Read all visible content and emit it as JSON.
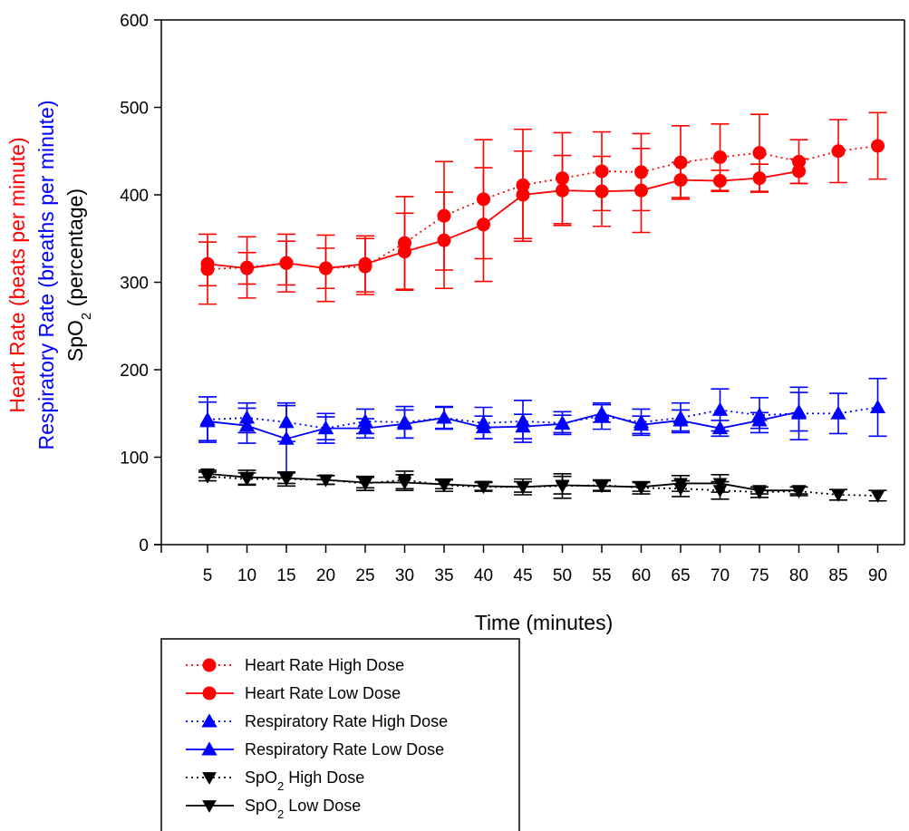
{
  "chart_data": {
    "type": "line",
    "x": [
      5,
      10,
      15,
      20,
      25,
      30,
      35,
      40,
      45,
      50,
      55,
      60,
      65,
      70,
      75,
      80,
      85,
      90
    ],
    "x_tick_labels": [
      "5",
      "10",
      "15",
      "20",
      "25",
      "30",
      "35",
      "40",
      "45",
      "50",
      "55",
      "60",
      "65",
      "70",
      "75",
      "80",
      "85",
      "90"
    ],
    "y_ticks": [
      0,
      100,
      200,
      300,
      400,
      500,
      600
    ],
    "ylim": [
      0,
      600
    ],
    "xlabel": "Time (minutes)",
    "ylabel_lines": [
      {
        "text": "Heart Rate (beats per minute)",
        "color": "#ff0000"
      },
      {
        "text": "Respiratory Rate (breaths per minute)",
        "color": "#0000ff"
      },
      {
        "text": "SpO",
        "sub": "2",
        "rest": " (percentage)",
        "color": "#000000"
      }
    ],
    "legend_position": "bottom-left (below plot)",
    "grid": false,
    "series": [
      {
        "name": "Heart Rate High Dose",
        "legend_text": "Heart Rate High Dose",
        "color": "#ff0000",
        "marker": "circle",
        "line": "dotted",
        "values": [
          315,
          317,
          322,
          316,
          318,
          345,
          376,
          395,
          411,
          419,
          427,
          426,
          437,
          443,
          448,
          438,
          450,
          456
        ],
        "err": [
          40,
          35,
          33,
          38,
          32,
          53,
          62,
          68,
          64,
          52,
          45,
          44,
          42,
          38,
          44,
          25,
          36,
          38
        ]
      },
      {
        "name": "Heart Rate Low Dose",
        "legend_text": "Heart Rate Low Dose",
        "color": "#ff0000",
        "marker": "circle",
        "line": "solid",
        "values": [
          321,
          316,
          322,
          316,
          321,
          335,
          348,
          366,
          400,
          405,
          404,
          405,
          417,
          416,
          419,
          427,
          null,
          null
        ],
        "err": [
          25,
          18,
          25,
          23,
          32,
          44,
          55,
          65,
          50,
          40,
          40,
          48,
          20,
          12,
          16,
          14,
          null,
          null
        ]
      },
      {
        "name": "Respiratory Rate High Dose",
        "legend_text": "Respiratory Rate High Dose",
        "color": "#0000ff",
        "marker": "triangle-up",
        "line": "dotted",
        "values": [
          143,
          145,
          140,
          133,
          141,
          140,
          145,
          139,
          141,
          139,
          147,
          140,
          145,
          154,
          148,
          150,
          150,
          157
        ],
        "err": [
          26,
          17,
          22,
          17,
          14,
          18,
          13,
          18,
          24,
          13,
          15,
          15,
          17,
          24,
          20,
          30,
          23,
          33
        ]
      },
      {
        "name": "Respiratory Rate Low Dose",
        "legend_text": "Respiratory Rate Low Dose",
        "color": "#0000ff",
        "marker": "triangle-up",
        "line": "solid",
        "values": [
          141,
          136,
          121,
          133,
          133,
          138,
          145,
          134,
          135,
          138,
          150,
          137,
          142,
          133,
          142,
          152,
          null,
          null
        ],
        "err": [
          22,
          20,
          38,
          13,
          11,
          16,
          12,
          13,
          14,
          10,
          10,
          10,
          12,
          9,
          9,
          22,
          null,
          null
        ]
      },
      {
        "name": "SpO2 High Dose",
        "legend_text": "SpO",
        "legend_sub": "2",
        "legend_rest": " High Dose",
        "color": "#000000",
        "marker": "triangle-down",
        "line": "dotted",
        "values": [
          78,
          75,
          75,
          74,
          70,
          74,
          68,
          66,
          66,
          67,
          68,
          65,
          64,
          62,
          60,
          61,
          57,
          56
        ],
        "err": [
          5,
          7,
          8,
          5,
          8,
          10,
          7,
          5,
          9,
          14,
          6,
          7,
          9,
          10,
          6,
          5,
          6,
          6
        ]
      },
      {
        "name": "SpO2 Low Dose",
        "legend_text": "SpO",
        "legend_sub": "2",
        "legend_rest": " Low Dose",
        "color": "#000000",
        "marker": "triangle-down",
        "line": "solid",
        "values": [
          81,
          77,
          76,
          74,
          71,
          71,
          69,
          67,
          66,
          68,
          67,
          66,
          70,
          70,
          62,
          62,
          null,
          null
        ],
        "err": [
          4,
          8,
          6,
          5,
          6,
          9,
          5,
          5,
          6,
          10,
          6,
          5,
          9,
          10,
          4,
          4,
          null,
          null
        ]
      }
    ]
  }
}
